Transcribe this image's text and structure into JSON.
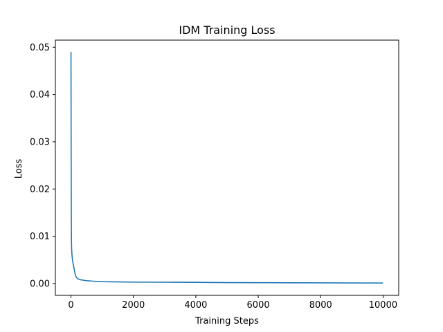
{
  "chart_data": {
    "type": "line",
    "title": "IDM Training Loss",
    "xlabel": "Training Steps",
    "ylabel": "Loss",
    "xlim": [
      -500,
      10500
    ],
    "ylim": [
      -0.0025,
      0.0515
    ],
    "xticks": [
      0,
      2000,
      4000,
      6000,
      8000,
      10000
    ],
    "xtick_labels": [
      "0",
      "2000",
      "4000",
      "6000",
      "8000",
      "10000"
    ],
    "yticks": [
      0.0,
      0.01,
      0.02,
      0.03,
      0.04,
      0.05
    ],
    "ytick_labels": [
      "0.00",
      "0.01",
      "0.02",
      "0.03",
      "0.04",
      "0.05"
    ],
    "grid": false,
    "legend": "none",
    "series": [
      {
        "color": "#1f77b4",
        "x": [
          0,
          5,
          10,
          15,
          20,
          30,
          40,
          50,
          60,
          80,
          100,
          120,
          150,
          200,
          250,
          300,
          400,
          500,
          700,
          1000,
          1500,
          2000,
          3000,
          4000,
          5000,
          6000,
          7000,
          8000,
          9000,
          10000
        ],
        "y": [
          0.049,
          0.03,
          0.014,
          0.009,
          0.0075,
          0.0062,
          0.0055,
          0.0049,
          0.0045,
          0.0038,
          0.0031,
          0.0024,
          0.0016,
          0.0011,
          0.0009,
          0.0008,
          0.0007,
          0.0006,
          0.0005,
          0.0004,
          0.00035,
          0.0003,
          0.00028,
          0.00025,
          0.0002,
          0.00018,
          0.00016,
          0.00014,
          0.00012,
          0.0001
        ]
      }
    ]
  }
}
